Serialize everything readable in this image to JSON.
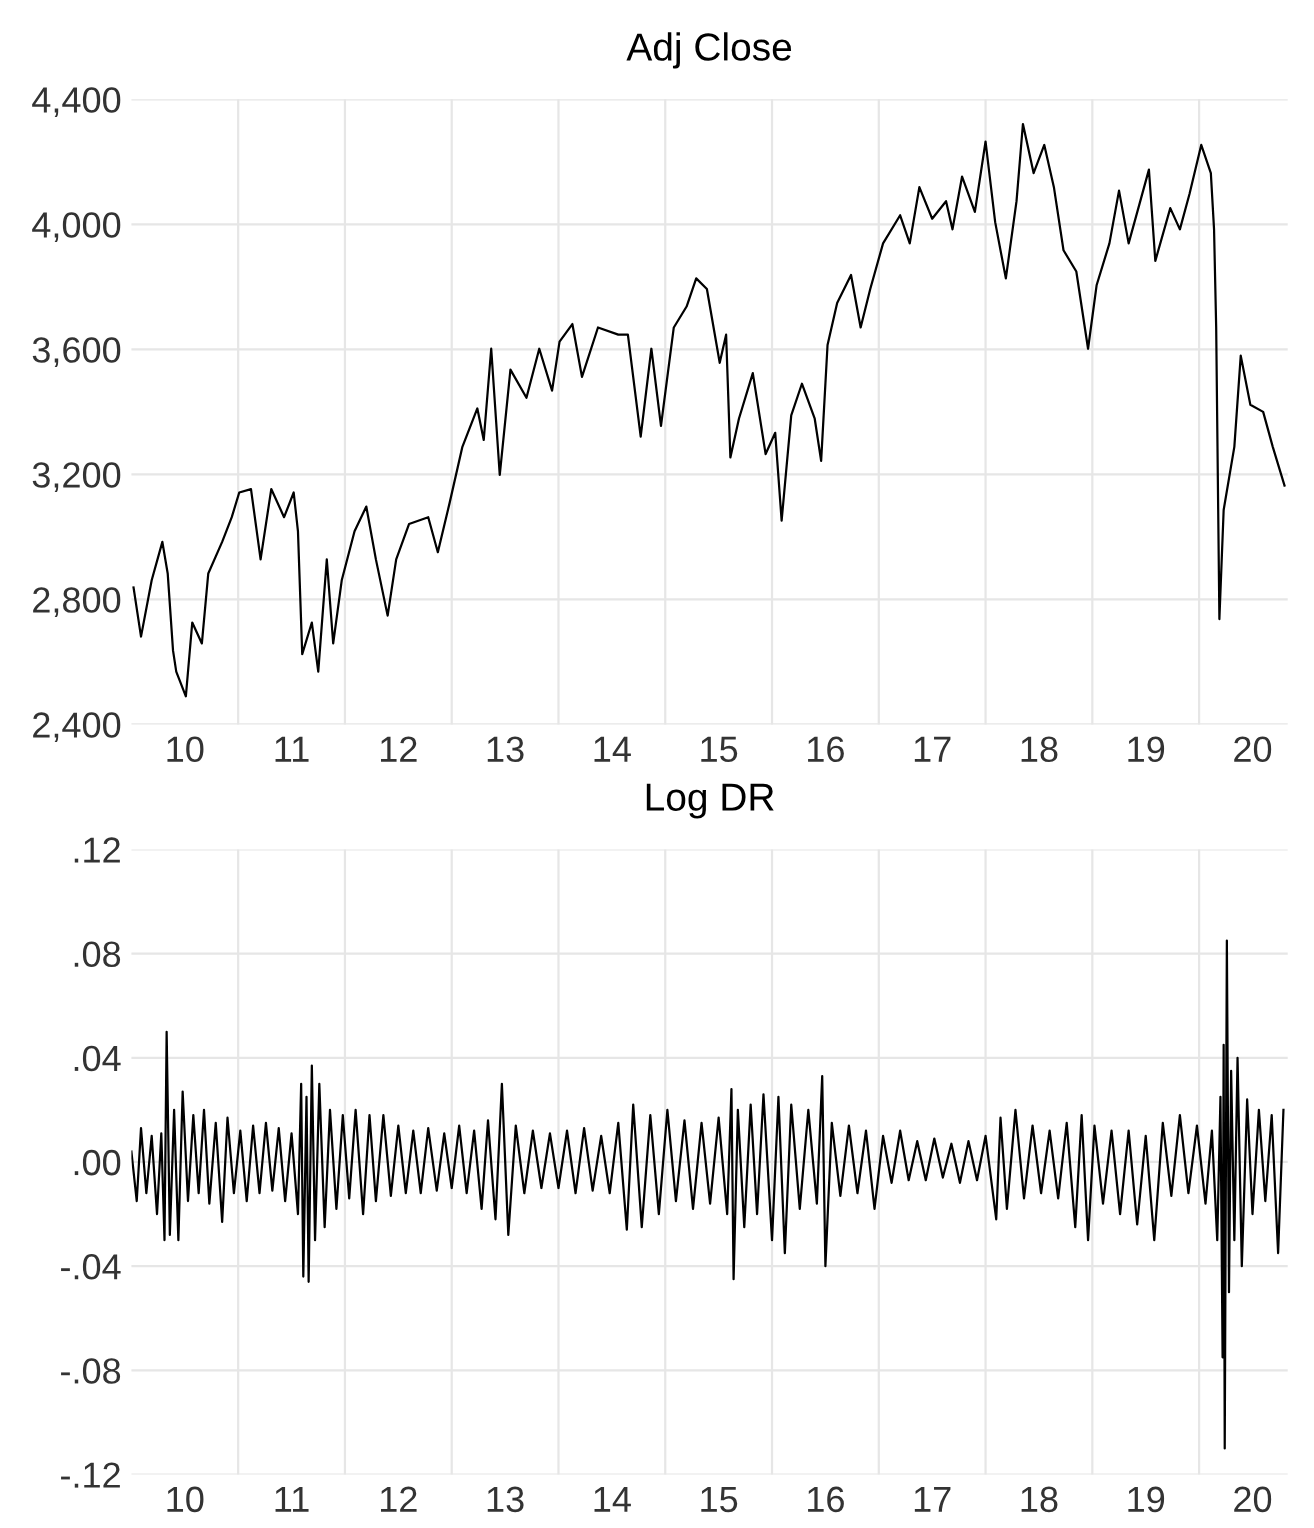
{
  "chart_data": [
    {
      "type": "line",
      "title": "Adj Close",
      "grid": true,
      "line_style": "solid",
      "xlim": [
        9.5,
        20.33
      ],
      "xticks": [
        10,
        11,
        12,
        13,
        14,
        15,
        16,
        17,
        18,
        19,
        20,
        {
          "value": 10.5,
          "label": null
        },
        {
          "value": 11.5,
          "label": null
        },
        {
          "value": 12.5,
          "label": null
        },
        {
          "value": 13.5,
          "label": null
        },
        {
          "value": 14.5,
          "label": null
        },
        {
          "value": 15.5,
          "label": null
        },
        {
          "value": 16.5,
          "label": null
        },
        {
          "value": 17.5,
          "label": null
        },
        {
          "value": 18.5,
          "label": null
        },
        {
          "value": 19.5,
          "label": null
        }
      ],
      "ylim": [
        2400,
        4400
      ],
      "yticks": [
        {
          "value": 2400,
          "label": "2,400"
        },
        {
          "value": 2800,
          "label": "2,800"
        },
        {
          "value": 3200,
          "label": "3,200"
        },
        {
          "value": 3600,
          "label": "3,600"
        },
        {
          "value": 4000,
          "label": "4,000"
        },
        {
          "value": 4400,
          "label": "4,400"
        }
      ],
      "series": [
        {
          "color": "#000000",
          "x": [
            9.52,
            9.59,
            9.69,
            9.79,
            9.84,
            9.89,
            9.92,
            10.01,
            10.07,
            10.16,
            10.22,
            10.35,
            10.44,
            10.51,
            10.62,
            10.71,
            10.81,
            10.93,
            11.02,
            11.06,
            11.1,
            11.19,
            11.25,
            11.33,
            11.39,
            11.47,
            11.59,
            11.7,
            11.79,
            11.9,
            11.98,
            12.1,
            12.28,
            12.37,
            12.48,
            12.6,
            12.74,
            12.8,
            12.87,
            12.95,
            13.05,
            13.2,
            13.32,
            13.44,
            13.51,
            13.63,
            13.72,
            13.87,
            14.06,
            14.15,
            14.27,
            14.37,
            14.46,
            14.58,
            14.7,
            14.79,
            14.89,
            15.01,
            15.07,
            15.11,
            15.19,
            15.32,
            15.44,
            15.53,
            15.59,
            15.68,
            15.78,
            15.9,
            15.96,
            16.02,
            16.11,
            16.24,
            16.33,
            16.42,
            16.54,
            16.7,
            16.79,
            16.88,
            17.0,
            17.13,
            17.19,
            17.28,
            17.4,
            17.5,
            17.59,
            17.69,
            17.79,
            17.85,
            17.95,
            18.05,
            18.14,
            18.23,
            18.35,
            18.46,
            18.54,
            18.66,
            18.75,
            18.84,
            18.94,
            19.03,
            19.09,
            19.23,
            19.32,
            19.41,
            19.52,
            19.61,
            19.64,
            19.66,
            19.69,
            19.73,
            19.83,
            19.89,
            19.98,
            20.1,
            20.19,
            20.3
          ],
          "values": [
            2838,
            2681,
            2861,
            2984,
            2883,
            2636,
            2569,
            2490,
            2726,
            2659,
            2883,
            2984,
            3063,
            3142,
            3153,
            2928,
            3153,
            3063,
            3142,
            3018,
            2625,
            2726,
            2569,
            2928,
            2659,
            2861,
            3018,
            3097,
            2928,
            2748,
            2928,
            3041,
            3063,
            2951,
            3108,
            3288,
            3411,
            3310,
            3602,
            3198,
            3535,
            3445,
            3602,
            3468,
            3625,
            3681,
            3512,
            3670,
            3647,
            3647,
            3321,
            3602,
            3355,
            3670,
            3737,
            3827,
            3793,
            3557,
            3647,
            3254,
            3378,
            3524,
            3265,
            3333,
            3052,
            3389,
            3490,
            3378,
            3243,
            3614,
            3748,
            3838,
            3670,
            3793,
            3939,
            4029,
            3939,
            4119,
            4018,
            4074,
            3984,
            4153,
            4040,
            4265,
            4007,
            3827,
            4074,
            4321,
            4164,
            4254,
            4119,
            3917,
            3849,
            3602,
            3805,
            3939,
            4108,
            3939,
            4063,
            4175,
            3883,
            4052,
            3984,
            4097,
            4254,
            4164,
            3984,
            3670,
            2737,
            3086,
            3288,
            3580,
            3423,
            3400,
            3288,
            3164
          ]
        }
      ]
    },
    {
      "type": "line",
      "title": "Log DR",
      "grid": true,
      "line_style": "solid",
      "xlim": [
        9.5,
        20.33
      ],
      "xticks": [
        10,
        11,
        12,
        13,
        14,
        15,
        16,
        17,
        18,
        19,
        20,
        {
          "value": 10.5,
          "label": null
        },
        {
          "value": 11.5,
          "label": null
        },
        {
          "value": 12.5,
          "label": null
        },
        {
          "value": 13.5,
          "label": null
        },
        {
          "value": 14.5,
          "label": null
        },
        {
          "value": 15.5,
          "label": null
        },
        {
          "value": 16.5,
          "label": null
        },
        {
          "value": 17.5,
          "label": null
        },
        {
          "value": 18.5,
          "label": null
        },
        {
          "value": 19.5,
          "label": null
        }
      ],
      "ylim": [
        -0.12,
        0.12
      ],
      "yticks": [
        {
          "value": -0.12,
          "label": "-.12"
        },
        {
          "value": -0.08,
          "label": "-.08"
        },
        {
          "value": -0.04,
          "label": "-.04"
        },
        {
          "value": 0,
          "label": ".00"
        },
        {
          "value": 0.04,
          "label": ".04"
        },
        {
          "value": 0.08,
          "label": ".08"
        },
        {
          "value": 0.12,
          "label": ".12"
        }
      ],
      "series": [
        {
          "color": "#000000",
          "x": [
            9.5,
            9.55,
            9.59,
            9.64,
            9.69,
            9.74,
            9.78,
            9.81,
            9.83,
            9.86,
            9.9,
            9.94,
            9.98,
            10.03,
            10.08,
            10.13,
            10.18,
            10.23,
            10.29,
            10.35,
            10.4,
            10.46,
            10.52,
            10.58,
            10.64,
            10.7,
            10.76,
            10.82,
            10.88,
            10.94,
            11.0,
            11.06,
            11.09,
            11.11,
            11.14,
            11.16,
            11.19,
            11.22,
            11.26,
            11.31,
            11.36,
            11.42,
            11.48,
            11.54,
            11.6,
            11.67,
            11.73,
            11.79,
            11.86,
            11.93,
            12.0,
            12.07,
            12.14,
            12.21,
            12.28,
            12.36,
            12.43,
            12.5,
            12.57,
            12.64,
            12.71,
            12.78,
            12.84,
            12.91,
            12.97,
            13.03,
            13.1,
            13.18,
            13.26,
            13.34,
            13.42,
            13.5,
            13.58,
            13.66,
            13.74,
            13.82,
            13.9,
            13.98,
            14.06,
            14.14,
            14.2,
            14.28,
            14.36,
            14.44,
            14.52,
            14.6,
            14.68,
            14.76,
            14.84,
            14.92,
            15.0,
            15.08,
            15.12,
            15.14,
            15.18,
            15.24,
            15.3,
            15.36,
            15.42,
            15.5,
            15.56,
            15.62,
            15.68,
            15.76,
            15.84,
            15.92,
            15.97,
            16.0,
            16.06,
            16.14,
            16.22,
            16.3,
            16.38,
            16.46,
            16.54,
            16.62,
            16.7,
            16.78,
            16.86,
            16.94,
            17.02,
            17.1,
            17.18,
            17.26,
            17.34,
            17.42,
            17.5,
            17.6,
            17.64,
            17.7,
            17.78,
            17.86,
            17.94,
            18.02,
            18.1,
            18.18,
            18.26,
            18.34,
            18.4,
            18.46,
            18.52,
            18.6,
            18.68,
            18.76,
            18.84,
            18.92,
            19.0,
            19.08,
            19.16,
            19.24,
            19.32,
            19.4,
            19.48,
            19.56,
            19.62,
            19.67,
            19.7,
            19.72,
            19.73,
            19.74,
            19.76,
            19.78,
            19.8,
            19.83,
            19.86,
            19.9,
            19.95,
            20.0,
            20.06,
            20.12,
            20.18,
            20.24,
            20.29
          ],
          "values": [
            0.004,
            -0.015,
            0.013,
            -0.012,
            0.01,
            -0.02,
            0.011,
            -0.03,
            0.05,
            -0.028,
            0.02,
            -0.03,
            0.027,
            -0.015,
            0.018,
            -0.012,
            0.02,
            -0.016,
            0.015,
            -0.023,
            0.017,
            -0.012,
            0.012,
            -0.015,
            0.014,
            -0.012,
            0.015,
            -0.011,
            0.013,
            -0.015,
            0.011,
            -0.02,
            0.03,
            -0.044,
            0.025,
            -0.046,
            0.037,
            -0.03,
            0.03,
            -0.025,
            0.02,
            -0.018,
            0.018,
            -0.014,
            0.02,
            -0.02,
            0.018,
            -0.015,
            0.018,
            -0.013,
            0.014,
            -0.012,
            0.012,
            -0.012,
            0.013,
            -0.011,
            0.011,
            -0.01,
            0.014,
            -0.012,
            0.012,
            -0.018,
            0.016,
            -0.022,
            0.03,
            -0.028,
            0.014,
            -0.012,
            0.012,
            -0.01,
            0.011,
            -0.01,
            0.012,
            -0.012,
            0.013,
            -0.011,
            0.01,
            -0.012,
            0.015,
            -0.026,
            0.022,
            -0.025,
            0.018,
            -0.02,
            0.02,
            -0.015,
            0.016,
            -0.018,
            0.015,
            -0.016,
            0.017,
            -0.02,
            0.028,
            -0.045,
            0.02,
            -0.025,
            0.022,
            -0.02,
            0.026,
            -0.03,
            0.025,
            -0.035,
            0.022,
            -0.018,
            0.02,
            -0.016,
            0.033,
            -0.04,
            0.015,
            -0.013,
            0.014,
            -0.012,
            0.012,
            -0.018,
            0.01,
            -0.008,
            0.012,
            -0.007,
            0.008,
            -0.007,
            0.009,
            -0.006,
            0.007,
            -0.008,
            0.008,
            -0.007,
            0.01,
            -0.022,
            0.017,
            -0.018,
            0.02,
            -0.014,
            0.014,
            -0.012,
            0.012,
            -0.014,
            0.015,
            -0.025,
            0.018,
            -0.03,
            0.014,
            -0.016,
            0.012,
            -0.02,
            0.012,
            -0.024,
            0.01,
            -0.03,
            0.015,
            -0.013,
            0.018,
            -0.012,
            0.014,
            -0.016,
            0.012,
            -0.03,
            0.025,
            -0.075,
            0.045,
            -0.11,
            0.085,
            -0.05,
            0.035,
            -0.03,
            0.04,
            -0.04,
            0.024,
            -0.02,
            0.02,
            -0.015,
            0.018,
            -0.035,
            0.02
          ]
        }
      ]
    }
  ]
}
